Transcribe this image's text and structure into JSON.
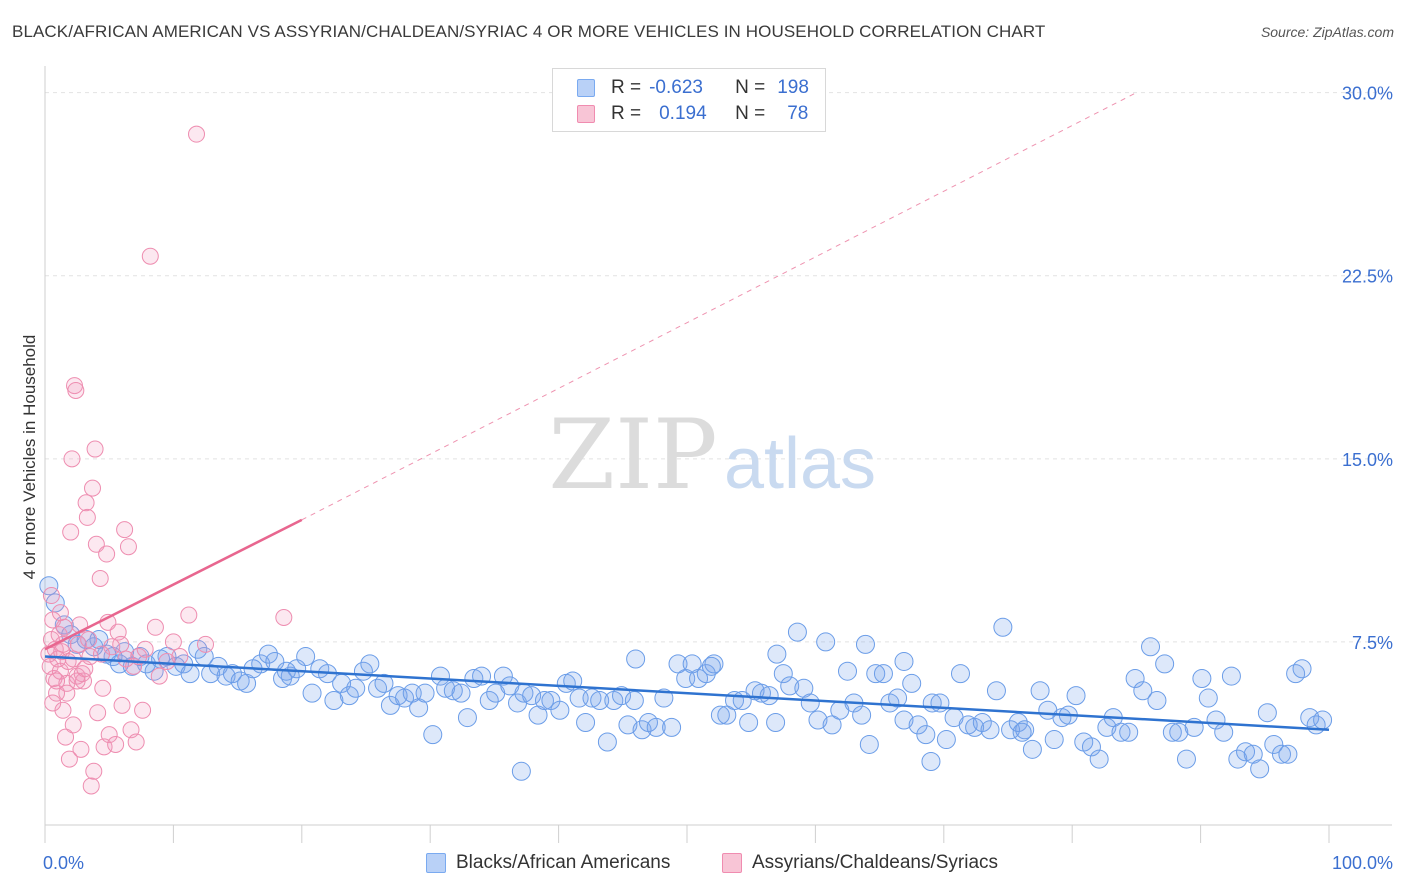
{
  "title": "BLACK/AFRICAN AMERICAN VS ASSYRIAN/CHALDEAN/SYRIAC 4 OR MORE VEHICLES IN HOUSEHOLD CORRELATION CHART",
  "source": "Source: ZipAtlas.com",
  "watermark": {
    "zip": "ZIP",
    "atlas": "atlas"
  },
  "legend": {
    "r_label": "R =",
    "n_label": "N =",
    "rows": [
      {
        "r": "-0.623",
        "n": "198",
        "color": "#7aaaf0",
        "fill": "#b9d1f7"
      },
      {
        "r": "0.194",
        "n": "78",
        "color": "#f08cb0",
        "fill": "#f8c5d6"
      }
    ]
  },
  "colors": {
    "blue": "#6b9de8",
    "blue_line": "#2f73d0",
    "pink": "#ee8db0",
    "pink_line": "#e8668f",
    "axis_text": "#3b6fd0"
  },
  "chart_data": {
    "type": "scatter",
    "ylabel": "4 or more Vehicles in Household",
    "x_tick_labels": [
      "0.0%",
      "100.0%"
    ],
    "y_tick_labels": [
      "7.5%",
      "15.0%",
      "22.5%",
      "30.0%"
    ],
    "xlim": [
      0,
      100
    ],
    "ylim": [
      0,
      30.6
    ],
    "y_ticks": [
      7.5,
      15.0,
      22.5,
      30.0
    ],
    "x_ticks": [
      0,
      10,
      20,
      30,
      40,
      50,
      60,
      70,
      80,
      90,
      100
    ],
    "grid": true,
    "legend_position": "top-center",
    "series": [
      {
        "name": "Blacks/African Americans",
        "trend": {
          "x1": 0,
          "y1": 6.9,
          "x2": 100,
          "y2": 3.9
        },
        "points": [
          [
            0.3,
            9.8
          ],
          [
            0.8,
            9.1
          ],
          [
            1.5,
            8.2
          ],
          [
            2.0,
            7.8
          ],
          [
            2.5,
            7.4
          ],
          [
            3.2,
            7.6
          ],
          [
            3.8,
            7.3
          ],
          [
            4.2,
            7.6
          ],
          [
            4.8,
            7.0
          ],
          [
            5.3,
            6.9
          ],
          [
            5.8,
            6.6
          ],
          [
            6.2,
            7.1
          ],
          [
            6.8,
            6.5
          ],
          [
            7.4,
            6.9
          ],
          [
            7.9,
            6.6
          ],
          [
            8.5,
            6.3
          ],
          [
            9.0,
            6.8
          ],
          [
            9.5,
            6.9
          ],
          [
            10.2,
            6.5
          ],
          [
            10.8,
            6.6
          ],
          [
            11.3,
            6.2
          ],
          [
            11.9,
            7.2
          ],
          [
            12.4,
            6.9
          ],
          [
            12.9,
            6.2
          ],
          [
            13.5,
            6.5
          ],
          [
            14.1,
            6.1
          ],
          [
            14.6,
            6.2
          ],
          [
            15.2,
            5.9
          ],
          [
            15.7,
            5.8
          ],
          [
            16.2,
            6.4
          ],
          [
            16.8,
            6.6
          ],
          [
            17.4,
            7.0
          ],
          [
            17.9,
            6.7
          ],
          [
            18.5,
            6.0
          ],
          [
            19.1,
            6.1
          ],
          [
            19.6,
            6.4
          ],
          [
            20.3,
            6.9
          ],
          [
            20.8,
            5.4
          ],
          [
            21.4,
            6.4
          ],
          [
            22.0,
            6.2
          ],
          [
            22.5,
            5.1
          ],
          [
            23.1,
            5.8
          ],
          [
            23.7,
            5.3
          ],
          [
            24.2,
            5.6
          ],
          [
            24.8,
            6.3
          ],
          [
            25.3,
            6.6
          ],
          [
            25.9,
            5.6
          ],
          [
            26.4,
            5.8
          ],
          [
            26.9,
            4.9
          ],
          [
            27.5,
            5.3
          ],
          [
            28.0,
            5.2
          ],
          [
            28.6,
            5.4
          ],
          [
            29.1,
            4.8
          ],
          [
            29.6,
            5.4
          ],
          [
            30.2,
            3.7
          ],
          [
            30.8,
            6.1
          ],
          [
            31.2,
            5.6
          ],
          [
            31.8,
            5.5
          ],
          [
            32.4,
            5.4
          ],
          [
            32.9,
            4.4
          ],
          [
            33.4,
            6.0
          ],
          [
            34.0,
            6.1
          ],
          [
            34.6,
            5.1
          ],
          [
            35.1,
            5.4
          ],
          [
            35.7,
            6.1
          ],
          [
            36.2,
            5.7
          ],
          [
            36.8,
            5.0
          ],
          [
            37.3,
            5.4
          ],
          [
            37.9,
            5.3
          ],
          [
            38.4,
            4.5
          ],
          [
            38.9,
            5.1
          ],
          [
            39.4,
            5.1
          ],
          [
            40.1,
            4.7
          ],
          [
            40.6,
            5.8
          ],
          [
            41.1,
            5.9
          ],
          [
            41.6,
            5.2
          ],
          [
            42.1,
            4.2
          ],
          [
            42.6,
            5.2
          ],
          [
            43.2,
            5.1
          ],
          [
            43.8,
            3.4
          ],
          [
            44.3,
            5.1
          ],
          [
            44.9,
            5.3
          ],
          [
            45.4,
            4.1
          ],
          [
            45.9,
            5.1
          ],
          [
            46.5,
            3.9
          ],
          [
            47.0,
            4.2
          ],
          [
            47.6,
            4.0
          ],
          [
            48.2,
            5.2
          ],
          [
            48.8,
            4.0
          ],
          [
            49.3,
            6.6
          ],
          [
            49.9,
            6.0
          ],
          [
            50.4,
            6.6
          ],
          [
            50.9,
            6.0
          ],
          [
            51.5,
            6.2
          ],
          [
            52.1,
            6.6
          ],
          [
            52.6,
            4.5
          ],
          [
            53.1,
            4.5
          ],
          [
            53.7,
            5.1
          ],
          [
            54.3,
            5.1
          ],
          [
            54.8,
            4.2
          ],
          [
            55.3,
            5.5
          ],
          [
            55.8,
            5.4
          ],
          [
            56.4,
            5.3
          ],
          [
            56.9,
            4.2
          ],
          [
            57.5,
            6.2
          ],
          [
            58.0,
            5.7
          ],
          [
            58.6,
            7.9
          ],
          [
            59.1,
            5.6
          ],
          [
            59.6,
            5.0
          ],
          [
            60.2,
            4.3
          ],
          [
            60.8,
            7.5
          ],
          [
            61.3,
            4.1
          ],
          [
            61.9,
            4.7
          ],
          [
            62.5,
            6.3
          ],
          [
            63.0,
            5.0
          ],
          [
            63.6,
            4.5
          ],
          [
            64.2,
            3.3
          ],
          [
            64.7,
            6.2
          ],
          [
            65.3,
            6.2
          ],
          [
            65.8,
            5.0
          ],
          [
            66.4,
            5.2
          ],
          [
            66.9,
            4.3
          ],
          [
            67.5,
            5.8
          ],
          [
            68.0,
            4.1
          ],
          [
            68.6,
            3.7
          ],
          [
            69.1,
            5.0
          ],
          [
            69.7,
            5.0
          ],
          [
            70.2,
            3.5
          ],
          [
            70.8,
            4.4
          ],
          [
            71.3,
            6.2
          ],
          [
            71.9,
            4.1
          ],
          [
            72.4,
            4.0
          ],
          [
            73.0,
            4.2
          ],
          [
            73.6,
            3.9
          ],
          [
            74.1,
            5.5
          ],
          [
            74.6,
            8.1
          ],
          [
            75.2,
            3.9
          ],
          [
            75.8,
            4.2
          ],
          [
            76.3,
            3.9
          ],
          [
            76.9,
            3.1
          ],
          [
            77.5,
            5.5
          ],
          [
            78.1,
            4.7
          ],
          [
            78.6,
            3.5
          ],
          [
            79.2,
            4.4
          ],
          [
            79.7,
            4.5
          ],
          [
            80.3,
            5.3
          ],
          [
            80.9,
            3.4
          ],
          [
            81.5,
            3.2
          ],
          [
            82.1,
            2.7
          ],
          [
            82.7,
            4.0
          ],
          [
            83.2,
            4.4
          ],
          [
            83.8,
            3.8
          ],
          [
            84.4,
            3.8
          ],
          [
            84.9,
            6.0
          ],
          [
            85.5,
            5.5
          ],
          [
            86.1,
            7.3
          ],
          [
            86.6,
            5.1
          ],
          [
            87.2,
            6.6
          ],
          [
            87.8,
            3.8
          ],
          [
            88.3,
            3.8
          ],
          [
            88.9,
            2.7
          ],
          [
            89.5,
            4.0
          ],
          [
            90.1,
            6.0
          ],
          [
            90.6,
            5.2
          ],
          [
            91.2,
            4.3
          ],
          [
            91.8,
            3.8
          ],
          [
            92.4,
            6.1
          ],
          [
            92.9,
            2.7
          ],
          [
            93.5,
            3.0
          ],
          [
            94.1,
            2.9
          ],
          [
            94.6,
            2.3
          ],
          [
            95.2,
            4.6
          ],
          [
            95.7,
            3.3
          ],
          [
            96.3,
            2.9
          ],
          [
            96.8,
            2.9
          ],
          [
            97.4,
            6.2
          ],
          [
            97.9,
            6.4
          ],
          [
            98.5,
            4.4
          ],
          [
            99.0,
            4.1
          ],
          [
            99.5,
            4.3
          ],
          [
            63.9,
            7.4
          ],
          [
            66.9,
            6.7
          ],
          [
            76.1,
            3.8
          ],
          [
            69.0,
            2.6
          ],
          [
            51.9,
            6.5
          ],
          [
            37.1,
            2.2
          ],
          [
            57.0,
            7.0
          ],
          [
            46.0,
            6.8
          ],
          [
            18.8,
            6.3
          ]
        ]
      },
      {
        "name": "Assyrians/Chaldeans/Syriacs",
        "trend": {
          "x1": 0,
          "y1": 7.2,
          "x2": 20,
          "y2": 12.5
        },
        "trend_extension": {
          "x1": 20,
          "y1": 12.5,
          "x2": 85,
          "y2": 30.0
        },
        "points": [
          [
            0.3,
            7.0
          ],
          [
            0.4,
            6.5
          ],
          [
            0.5,
            7.6
          ],
          [
            0.6,
            8.4
          ],
          [
            0.7,
            6.0
          ],
          [
            0.8,
            7.2
          ],
          [
            0.9,
            5.4
          ],
          [
            1.0,
            6.8
          ],
          [
            1.1,
            7.8
          ],
          [
            1.2,
            6.3
          ],
          [
            1.3,
            7.1
          ],
          [
            1.4,
            4.7
          ],
          [
            1.5,
            8.1
          ],
          [
            1.6,
            3.6
          ],
          [
            1.7,
            5.8
          ],
          [
            1.8,
            6.7
          ],
          [
            1.9,
            2.7
          ],
          [
            2.0,
            12.0
          ],
          [
            2.1,
            15.0
          ],
          [
            2.2,
            4.1
          ],
          [
            2.3,
            18.0
          ],
          [
            2.4,
            17.8
          ],
          [
            2.5,
            6.1
          ],
          [
            2.6,
            7.4
          ],
          [
            2.8,
            3.1
          ],
          [
            3.0,
            5.9
          ],
          [
            3.2,
            13.2
          ],
          [
            3.3,
            12.6
          ],
          [
            3.5,
            6.9
          ],
          [
            3.6,
            1.6
          ],
          [
            3.7,
            13.8
          ],
          [
            3.8,
            2.2
          ],
          [
            3.9,
            15.4
          ],
          [
            4.0,
            11.5
          ],
          [
            4.1,
            4.6
          ],
          [
            4.3,
            10.1
          ],
          [
            4.5,
            5.6
          ],
          [
            4.6,
            3.2
          ],
          [
            4.8,
            11.1
          ],
          [
            4.9,
            8.3
          ],
          [
            5.0,
            3.7
          ],
          [
            5.2,
            7.3
          ],
          [
            5.5,
            3.3
          ],
          [
            5.7,
            7.9
          ],
          [
            6.0,
            4.9
          ],
          [
            6.2,
            12.1
          ],
          [
            6.5,
            11.4
          ],
          [
            6.7,
            3.9
          ],
          [
            6.9,
            6.5
          ],
          [
            7.1,
            3.4
          ],
          [
            7.3,
            6.9
          ],
          [
            7.6,
            4.7
          ],
          [
            7.8,
            7.2
          ],
          [
            8.2,
            23.3
          ],
          [
            8.6,
            8.1
          ],
          [
            9.5,
            6.7
          ],
          [
            10.0,
            7.5
          ],
          [
            10.5,
            6.9
          ],
          [
            11.2,
            8.6
          ],
          [
            11.8,
            28.3
          ],
          [
            12.5,
            7.4
          ],
          [
            18.6,
            8.5
          ],
          [
            2.7,
            8.2
          ],
          [
            1.2,
            8.7
          ],
          [
            0.9,
            5.9
          ],
          [
            2.9,
            6.2
          ],
          [
            3.4,
            7.6
          ],
          [
            0.5,
            9.4
          ],
          [
            1.7,
            5.4
          ],
          [
            2.2,
            6.8
          ],
          [
            4.4,
            7.0
          ],
          [
            5.9,
            7.4
          ],
          [
            3.1,
            6.4
          ],
          [
            1.4,
            7.4
          ],
          [
            0.6,
            5.0
          ],
          [
            2.5,
            5.9
          ],
          [
            6.3,
            6.8
          ],
          [
            8.9,
            6.1
          ]
        ]
      }
    ]
  }
}
